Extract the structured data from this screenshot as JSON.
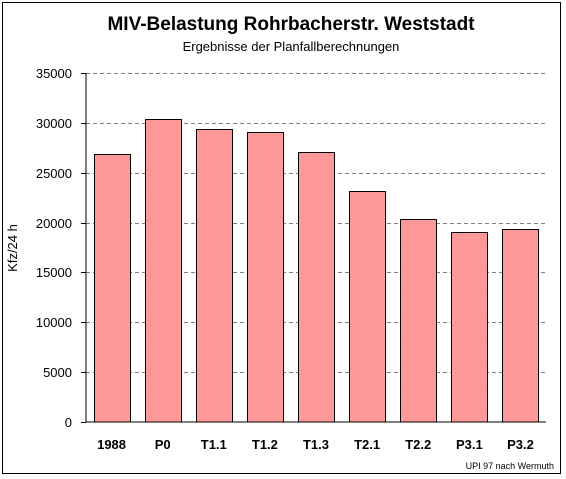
{
  "chart_data": {
    "type": "bar",
    "title": "MIV-Belastung  Rohrbacherstr. Weststadt",
    "subtitle": "Ergebnisse der Planfallberechnungen",
    "xlabel": "",
    "ylabel": "Kfz/24 h",
    "categories": [
      "1988",
      "P0",
      "T1.1",
      "T1.2",
      "T1.3",
      "T2.1",
      "T2.2",
      "P3.1",
      "P3.2"
    ],
    "values": [
      26900,
      30400,
      29400,
      29100,
      27100,
      23200,
      20400,
      19100,
      19400
    ],
    "ylim": [
      0,
      35000
    ],
    "yticks": [
      "0",
      "5000",
      "10000",
      "15000",
      "20000",
      "25000",
      "30000",
      "35000"
    ],
    "grid": true,
    "legend": "none",
    "source_note": "UPI 97 nach Wermuth",
    "colors": {
      "bar_fill": "#ff9999",
      "bar_stroke": "#000000",
      "gridline": "#808080",
      "background": "#ffffff"
    }
  }
}
